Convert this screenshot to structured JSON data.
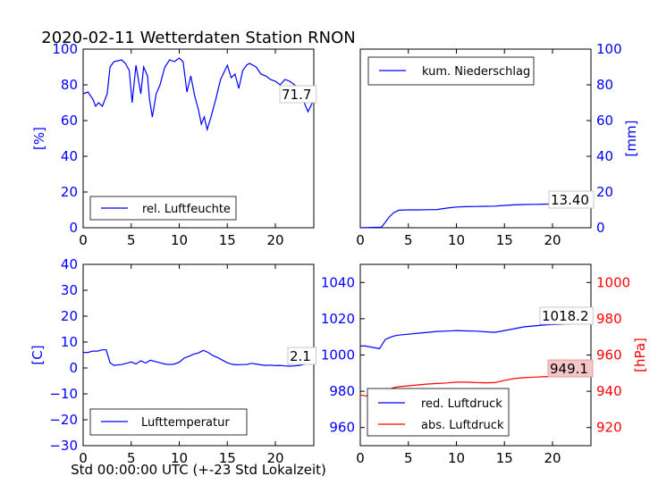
{
  "title": "2020-02-11 Wetterdaten Station RNON",
  "xlabel": "Std 00:00:00 UTC (+-23 Std Lokalzeit)",
  "colors": {
    "primary": "#0000ff",
    "secondary": "#ff0000",
    "text": "#000000"
  },
  "chart_data": [
    {
      "id": "humidity",
      "type": "line",
      "xlim": [
        0,
        24
      ],
      "ylim": [
        0,
        100
      ],
      "xticks": [
        "0",
        "5",
        "10",
        "15",
        "20"
      ],
      "yticks": [
        "0",
        "20",
        "40",
        "60",
        "80",
        "100"
      ],
      "ylabel": "[%]",
      "legend": "lower-left",
      "annotation": "71.7",
      "series": [
        {
          "name": "rel. Luftfeuchte",
          "color": "#0000ff",
          "x": [
            0,
            0.5,
            1,
            1.3,
            1.6,
            2,
            2.5,
            2.8,
            3.2,
            4,
            4.4,
            4.8,
            5.1,
            5.5,
            6,
            6.3,
            6.7,
            6.9,
            7.2,
            7.6,
            8,
            8.5,
            9,
            9.5,
            10,
            10.4,
            10.8,
            11.2,
            11.6,
            12,
            12.3,
            12.6,
            12.9,
            13.3,
            13.8,
            14.3,
            15,
            15.4,
            15.8,
            16.2,
            16.6,
            17,
            17.3,
            18,
            18.5,
            19,
            19.5,
            20,
            20.5,
            21,
            21.5,
            22,
            22.3,
            22.6,
            23,
            23.4,
            24
          ],
          "y": [
            75,
            76,
            72,
            68,
            70,
            68,
            75,
            90,
            93,
            94,
            92,
            88,
            70,
            91,
            75,
            90,
            85,
            72,
            62,
            75,
            80,
            90,
            94,
            93,
            95,
            93,
            76,
            85,
            74,
            66,
            58,
            62,
            55,
            62,
            72,
            83,
            91,
            84,
            86,
            78,
            88,
            91,
            92,
            90,
            86,
            85,
            83,
            82,
            80,
            83,
            82,
            80,
            78,
            75,
            70,
            65,
            71.7
          ]
        }
      ]
    },
    {
      "id": "precipitation",
      "type": "line",
      "xlim": [
        0,
        24
      ],
      "ylim": [
        0,
        100
      ],
      "xticks": [
        "0",
        "5",
        "10",
        "15",
        "20"
      ],
      "yticks": [
        "0",
        "20",
        "40",
        "60",
        "80",
        "100"
      ],
      "ylabel": "[mm]",
      "legend": "upper-left",
      "annotation": "13.40",
      "series": [
        {
          "name": "kum. Niederschlag",
          "color": "#0000ff",
          "x": [
            0,
            2.2,
            2.6,
            3.0,
            3.5,
            4.0,
            5,
            6,
            7,
            8,
            9,
            10,
            11,
            12,
            13,
            14,
            15,
            16,
            17,
            18,
            19,
            20,
            21,
            22,
            23,
            24
          ],
          "y": [
            0,
            0.3,
            3,
            6,
            8.5,
            9.8,
            10,
            10,
            10.1,
            10.2,
            11,
            11.6,
            11.8,
            11.9,
            12,
            12.1,
            12.5,
            12.8,
            13,
            13.1,
            13.2,
            13.3,
            13.3,
            13.35,
            13.4,
            13.4
          ]
        }
      ]
    },
    {
      "id": "temperature",
      "type": "line",
      "xlim": [
        0,
        24
      ],
      "ylim": [
        -30,
        40
      ],
      "xticks": [
        "0",
        "5",
        "10",
        "15",
        "20"
      ],
      "yticks": [
        "−30",
        "−20",
        "−10",
        "0",
        "10",
        "20",
        "30",
        "40"
      ],
      "ylabel": "[C]",
      "legend": "lower-left",
      "annotation": "2.1",
      "series": [
        {
          "name": "Lufttemperatur",
          "color": "#0000ff",
          "x": [
            0,
            0.5,
            1,
            1.5,
            2,
            2.4,
            2.8,
            3.2,
            4,
            4.5,
            5,
            5.5,
            6,
            6.5,
            7,
            7.5,
            8,
            8.5,
            9,
            9.5,
            10,
            10.5,
            11,
            11.5,
            12,
            12.5,
            13,
            13.5,
            14,
            14.5,
            15,
            15.5,
            16,
            16.5,
            17,
            17.5,
            18,
            18.5,
            19,
            19.5,
            20,
            20.5,
            21,
            21.5,
            22,
            22.5,
            23,
            23.5,
            24
          ],
          "y": [
            6,
            6,
            6.5,
            6.5,
            7,
            7,
            2,
            1,
            1.3,
            1.8,
            2.3,
            1.5,
            2.8,
            1.9,
            3,
            2.5,
            2,
            1.5,
            1.3,
            1.5,
            2.2,
            3.8,
            4.5,
            5.3,
            5.8,
            6.8,
            6,
            4.8,
            4,
            3,
            2,
            1.4,
            1.2,
            1.3,
            1.3,
            1.8,
            1.5,
            1.2,
            1,
            1.1,
            0.9,
            1,
            0.8,
            0.7,
            0.8,
            1,
            1.4,
            1.8,
            2.1
          ]
        }
      ]
    },
    {
      "id": "pressure",
      "type": "line",
      "xlim": [
        0,
        24
      ],
      "ylim": [
        950,
        1050
      ],
      "ylim_right": [
        910,
        1010
      ],
      "xticks": [
        "0",
        "5",
        "10",
        "15",
        "20"
      ],
      "yticks": [
        "960",
        "980",
        "1000",
        "1020",
        "1040"
      ],
      "yticks_right": [
        "920",
        "940",
        "960",
        "980",
        "1000"
      ],
      "ylabel_right": "[hPa]",
      "legend": "lower-left",
      "annotations": [
        "1018.2",
        "949.1"
      ],
      "series": [
        {
          "name": "red. Luftdruck",
          "color": "#0000ff",
          "axis": "left",
          "x": [
            0,
            0.5,
            1,
            1.5,
            2,
            2.3,
            2.6,
            3,
            3.5,
            4,
            5,
            6,
            7,
            8,
            9,
            10,
            11,
            12,
            13,
            14,
            15,
            16,
            17,
            18,
            19,
            20,
            21,
            22,
            23,
            24
          ],
          "y": [
            1005,
            1005,
            1004.5,
            1004,
            1003.5,
            1006,
            1008.5,
            1009.5,
            1010.5,
            1011,
            1011.5,
            1012,
            1012.5,
            1013,
            1013.2,
            1013.5,
            1013.3,
            1013.2,
            1012.8,
            1012.5,
            1013.5,
            1014.5,
            1015.5,
            1016,
            1016.5,
            1016.8,
            1017,
            1017.3,
            1017.5,
            1018.2
          ]
        },
        {
          "name": "abs. Luftdruck",
          "color": "#ff0000",
          "axis": "right",
          "x": [
            0,
            0.5,
            1,
            1.5,
            2,
            2.3,
            2.6,
            3,
            3.5,
            4,
            5,
            6,
            7,
            8,
            9,
            10,
            11,
            12,
            13,
            14,
            15,
            16,
            17,
            18,
            19,
            20,
            21,
            22,
            23,
            24
          ],
          "y": [
            938,
            937.5,
            937.5,
            937,
            936,
            939,
            940.5,
            941,
            942,
            942.5,
            943,
            943.5,
            944,
            944.3,
            944.6,
            945,
            945,
            944.8,
            944.7,
            944.8,
            946,
            947,
            947.5,
            947.8,
            948,
            948.2,
            948.4,
            948.6,
            948.9,
            949.1
          ]
        }
      ]
    }
  ]
}
